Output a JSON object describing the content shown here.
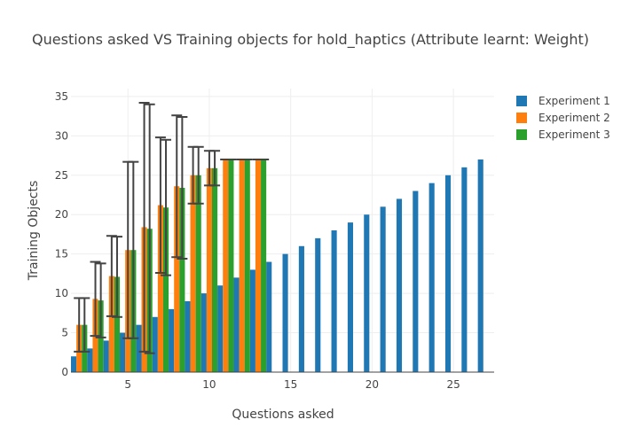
{
  "chart_data": {
    "type": "bar",
    "title": "Questions asked VS Training objects for hold_haptics (Attribute learnt: Weight)",
    "xlabel": "Questions asked",
    "ylabel": "Training Objects",
    "xlim": [
      1.5,
      27.5
    ],
    "ylim": [
      0,
      36
    ],
    "xticks": [
      5,
      10,
      15,
      20,
      25
    ],
    "yticks": [
      0,
      5,
      10,
      15,
      20,
      25,
      30,
      35
    ],
    "grid": true,
    "legend_position": "top-right",
    "series": [
      {
        "name": "Experiment 1",
        "color": "#1f77b4",
        "x": [
          2,
          3,
          4,
          5,
          6,
          7,
          8,
          9,
          10,
          11,
          12,
          13,
          14,
          15,
          16,
          17,
          18,
          19,
          20,
          21,
          22,
          23,
          24,
          25,
          26,
          27
        ],
        "values": [
          2,
          3,
          4,
          5,
          6,
          7,
          8,
          9,
          10,
          11,
          12,
          13,
          14,
          15,
          16,
          17,
          18,
          19,
          20,
          21,
          22,
          23,
          24,
          25,
          26,
          27
        ]
      },
      {
        "name": "Experiment 2",
        "color": "#ff7f0e",
        "x": [
          2,
          3,
          4,
          5,
          6,
          7,
          8,
          9,
          10,
          11,
          12,
          13
        ],
        "values": [
          6,
          9.3,
          12.2,
          15.5,
          18.4,
          21.2,
          23.6,
          25,
          25.9,
          27,
          27,
          27
        ],
        "error": [
          3.4,
          4.7,
          5.1,
          11.2,
          15.8,
          8.6,
          9,
          3.6,
          2.2,
          0,
          0,
          0
        ]
      },
      {
        "name": "Experiment 3",
        "color": "#2ca02c",
        "x": [
          2,
          3,
          4,
          5,
          6,
          7,
          8,
          9,
          10,
          11,
          12,
          13
        ],
        "values": [
          6,
          9.1,
          12.1,
          15.5,
          18.2,
          20.9,
          23.4,
          25,
          25.9,
          27,
          27,
          27
        ],
        "error": [
          3.4,
          4.7,
          5.1,
          11.2,
          15.8,
          8.6,
          9,
          3.6,
          2.2,
          0,
          0,
          0
        ]
      }
    ]
  }
}
